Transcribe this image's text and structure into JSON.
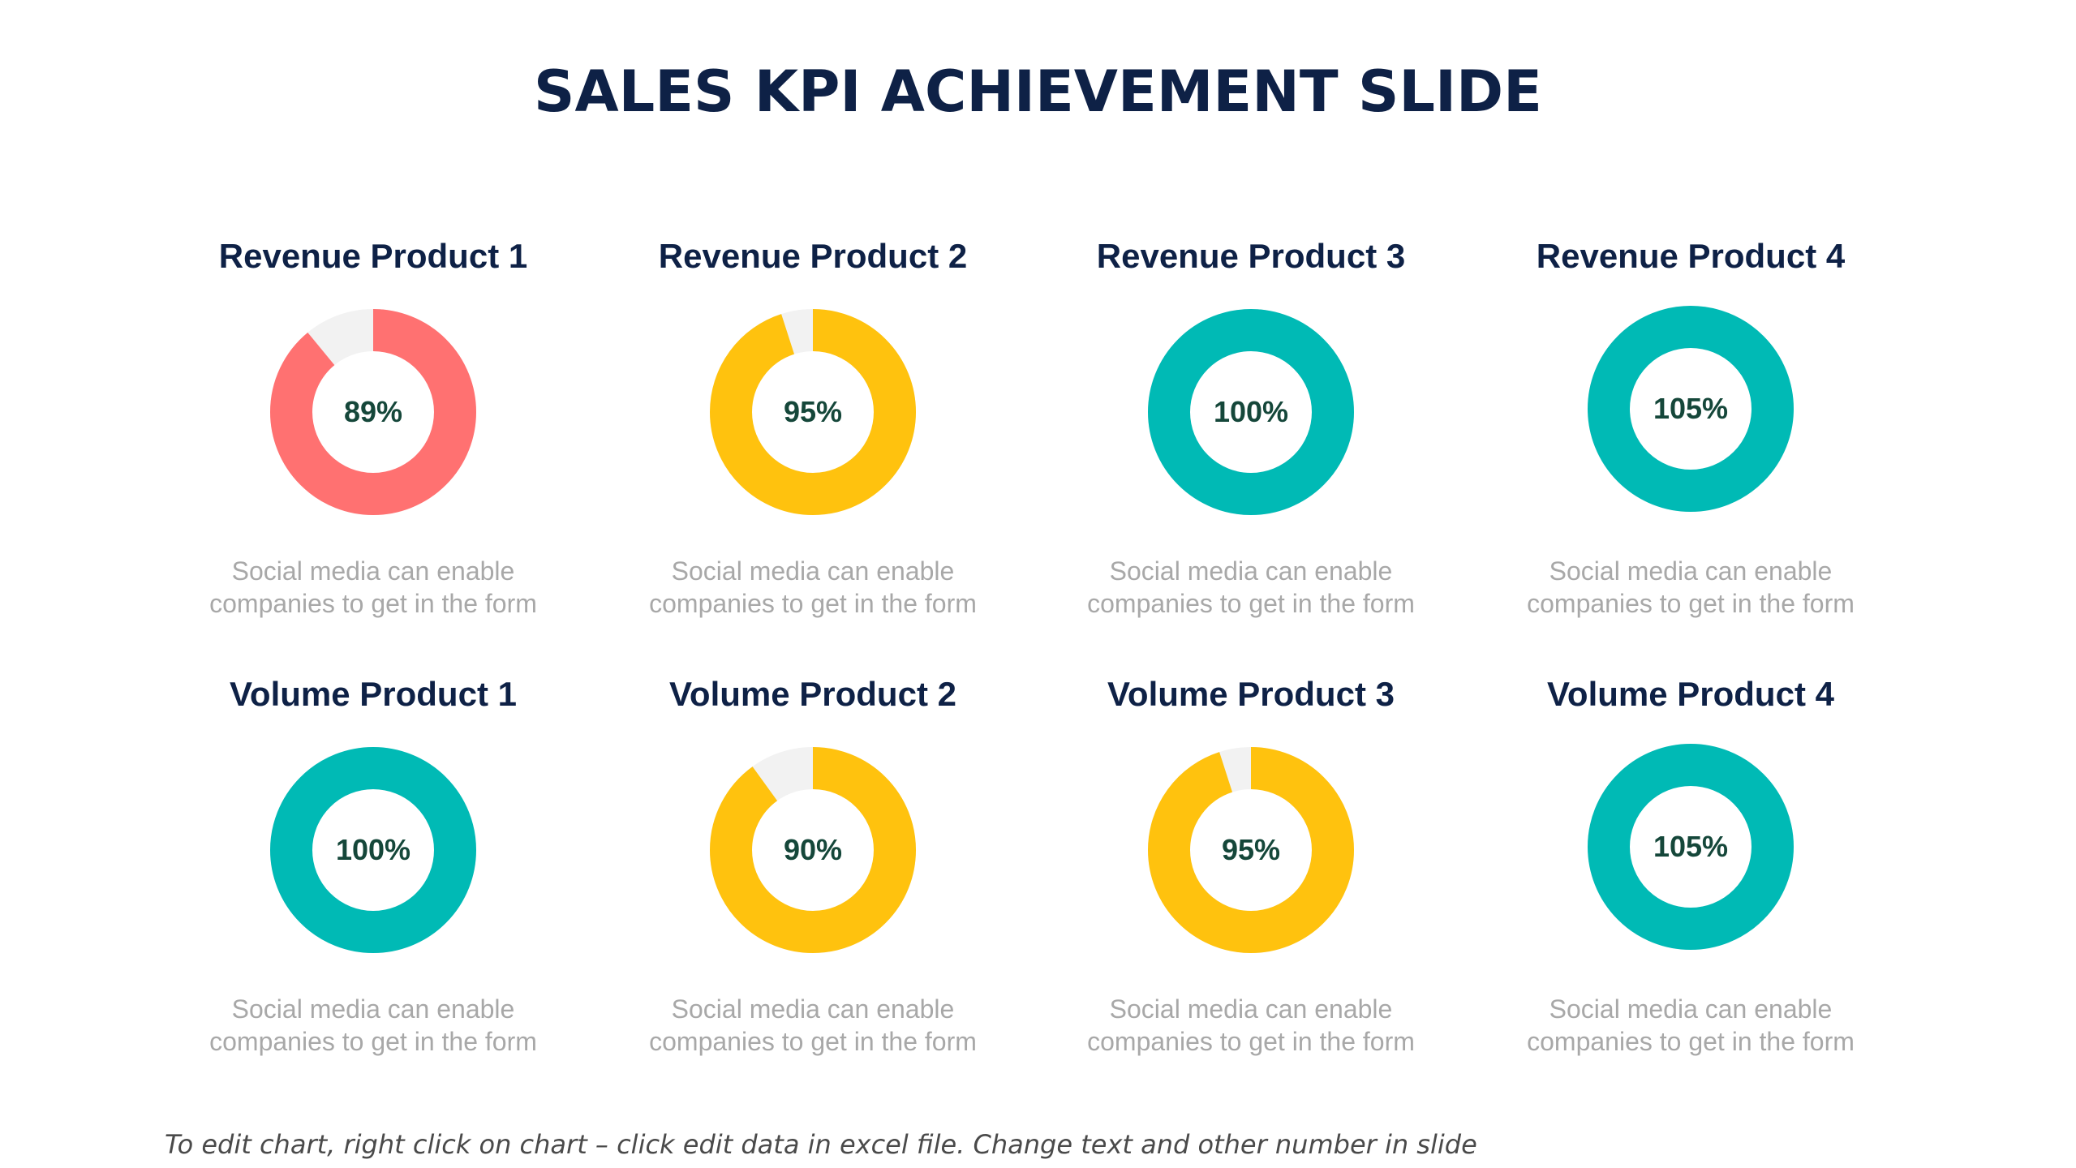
{
  "title": "SALES KPI ACHIEVEMENT SLIDE",
  "footer": "To edit chart, right click on chart – click edit data in excel file. Change text and other number in slide",
  "colors": {
    "title": "#0e2146",
    "remainder": "#f2f2f2",
    "value_text": "#15473a",
    "description": "#a8a8a8"
  },
  "chart_data": [
    {
      "type": "pie",
      "title": "Revenue Product 1",
      "value": 89,
      "label": "89%",
      "color": "#ff7171",
      "description": [
        "Social media can enable",
        "companies to get in the form"
      ]
    },
    {
      "type": "pie",
      "title": "Revenue Product 2",
      "value": 95,
      "label": "95%",
      "color": "#ffc20e",
      "description": [
        "Social media can enable",
        "companies to get in the form"
      ]
    },
    {
      "type": "pie",
      "title": "Revenue Product 3",
      "value": 100,
      "label": "100%",
      "color": "#00bab5",
      "description": [
        "Social media can enable",
        "companies to get in the form"
      ]
    },
    {
      "type": "pie",
      "title": "Revenue Product 4",
      "value": 105,
      "label": "105%",
      "color": "#00bab5",
      "description": [
        "Social media can enable",
        "companies to get in the form"
      ]
    },
    {
      "type": "pie",
      "title": "Volume Product 1",
      "value": 100,
      "label": "100%",
      "color": "#00bab5",
      "description": [
        "Social media can enable",
        "companies to get in the form"
      ]
    },
    {
      "type": "pie",
      "title": "Volume Product 2",
      "value": 90,
      "label": "90%",
      "color": "#ffc20e",
      "description": [
        "Social media can enable",
        "companies to get in the form"
      ]
    },
    {
      "type": "pie",
      "title": "Volume Product 3",
      "value": 95,
      "label": "95%",
      "color": "#ffc20e",
      "description": [
        "Social media can enable",
        "companies to get in the form"
      ]
    },
    {
      "type": "pie",
      "title": "Volume Product 4",
      "value": 105,
      "label": "105%",
      "color": "#00bab5",
      "description": [
        "Social media can enable",
        "companies to get in the form"
      ]
    }
  ]
}
